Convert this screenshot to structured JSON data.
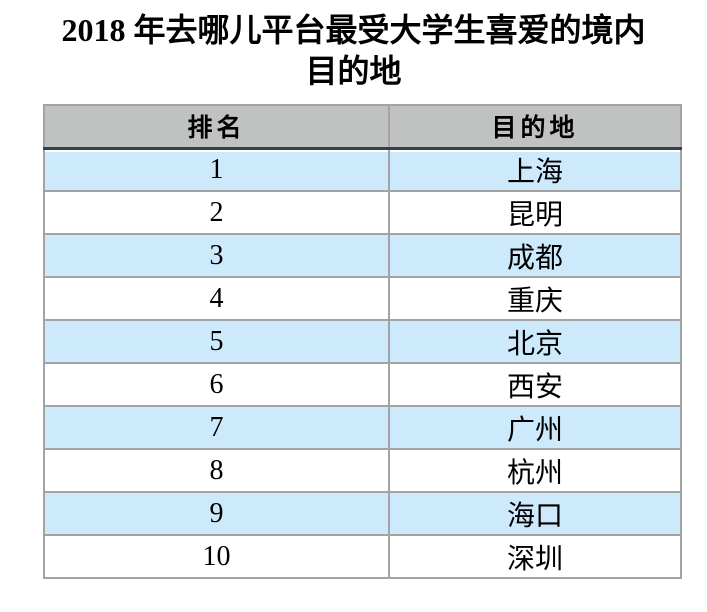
{
  "title": {
    "full": "2018 年去哪儿平台最受大学生喜爱的境内目的地",
    "line1": "2018 年去哪儿平台最受大学生喜爱的境内",
    "line2": "目的地"
  },
  "table": {
    "columns": [
      {
        "key": "rank",
        "label": "排名"
      },
      {
        "key": "destination",
        "label": "目的地"
      }
    ],
    "rows": [
      {
        "rank": "1",
        "destination": "上海"
      },
      {
        "rank": "2",
        "destination": "昆明"
      },
      {
        "rank": "3",
        "destination": "成都"
      },
      {
        "rank": "4",
        "destination": "重庆"
      },
      {
        "rank": "5",
        "destination": "北京"
      },
      {
        "rank": "6",
        "destination": "西安"
      },
      {
        "rank": "7",
        "destination": "广州"
      },
      {
        "rank": "8",
        "destination": "杭州"
      },
      {
        "rank": "9",
        "destination": "海口"
      },
      {
        "rank": "10",
        "destination": "深圳"
      }
    ]
  },
  "colors": {
    "header_bg": "#c0c2c2",
    "header_underline": "#35404b",
    "row_highlight": "#cdeafd",
    "row_plain": "#ffffff",
    "grid_border": "#a3a3a3",
    "text": "#000000"
  },
  "chart_data": {
    "type": "table",
    "title": "2018 年去哪儿平台最受大学生喜爱的境内目的地",
    "columns": [
      "排名",
      "目的地"
    ],
    "rows": [
      [
        "1",
        "上海"
      ],
      [
        "2",
        "昆明"
      ],
      [
        "3",
        "成都"
      ],
      [
        "4",
        "重庆"
      ],
      [
        "5",
        "北京"
      ],
      [
        "6",
        "西安"
      ],
      [
        "7",
        "广州"
      ],
      [
        "8",
        "杭州"
      ],
      [
        "9",
        "海口"
      ],
      [
        "10",
        "深圳"
      ]
    ],
    "layout": {
      "striped": true,
      "stripe_color": "#cdeafd",
      "header_bg": "#c0c2c2"
    }
  }
}
